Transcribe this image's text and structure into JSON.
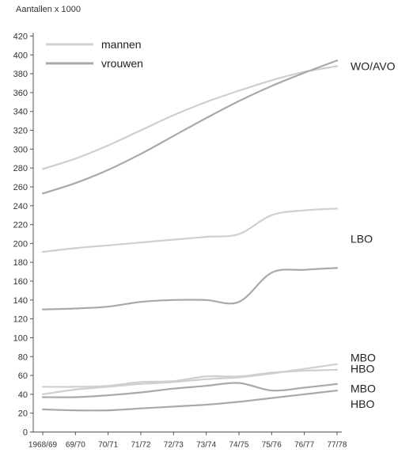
{
  "chart_data": {
    "type": "line",
    "ylabel": "Aantallen x 1000",
    "ylim": [
      0,
      420
    ],
    "yticks": [
      0,
      20,
      40,
      60,
      80,
      100,
      120,
      140,
      160,
      180,
      200,
      220,
      240,
      260,
      280,
      300,
      320,
      340,
      360,
      380,
      400,
      420
    ],
    "categories": [
      "1968/69",
      "69/70",
      "70/71",
      "71/72",
      "72/73",
      "73/74",
      "74/75",
      "75/76",
      "76/77",
      "77/78"
    ],
    "grid": false,
    "legend": {
      "placement": "top-left",
      "entries": [
        {
          "label": "mannen",
          "color": "#cfcfcf"
        },
        {
          "label": "vrouwen",
          "color": "#a9a9a9"
        }
      ]
    },
    "series": [
      {
        "group": "mannen",
        "label": "WO/AVO",
        "color": "#cfcfcf",
        "values": [
          279,
          290,
          304,
          320,
          336,
          350,
          362,
          373,
          382,
          388
        ]
      },
      {
        "group": "vrouwen",
        "label": "",
        "color": "#a9a9a9",
        "values": [
          253,
          264,
          278,
          295,
          314,
          333,
          351,
          367,
          381,
          394
        ]
      },
      {
        "group": "mannen",
        "label": "LBO",
        "color": "#cfcfcf",
        "values": [
          191,
          195,
          198,
          201,
          204,
          207,
          210,
          230,
          235,
          237
        ]
      },
      {
        "group": "vrouwen",
        "label": "",
        "color": "#a9a9a9",
        "values": [
          130,
          131,
          133,
          138,
          140,
          140,
          138,
          169,
          172,
          174
        ]
      },
      {
        "group": "mannen",
        "label": "MBO",
        "color": "#cfcfcf",
        "values": [
          40,
          45,
          48,
          51,
          53,
          56,
          58,
          62,
          67,
          72
        ]
      },
      {
        "group": "mannen",
        "label": "HBO",
        "color": "#cfcfcf",
        "values": [
          48,
          48,
          49,
          53,
          54,
          59,
          59,
          63,
          65,
          66
        ]
      },
      {
        "group": "vrouwen",
        "label": "MBO",
        "color": "#a9a9a9",
        "values": [
          37,
          37,
          39,
          42,
          46,
          49,
          52,
          44,
          47,
          51
        ]
      },
      {
        "group": "vrouwen",
        "label": "HBO",
        "color": "#a9a9a9",
        "values": [
          24,
          23,
          23,
          25,
          27,
          29,
          32,
          36,
          40,
          44
        ]
      }
    ],
    "labels": [
      {
        "text": "WO/AVO",
        "at_value": 388
      },
      {
        "text": "LBO",
        "at_value": 205
      },
      {
        "text": "MBO",
        "at_value": 79
      },
      {
        "text": "HBO",
        "at_value": 67
      },
      {
        "text": "MBO",
        "at_value": 46
      },
      {
        "text": "HBO",
        "at_value": 30
      }
    ]
  }
}
